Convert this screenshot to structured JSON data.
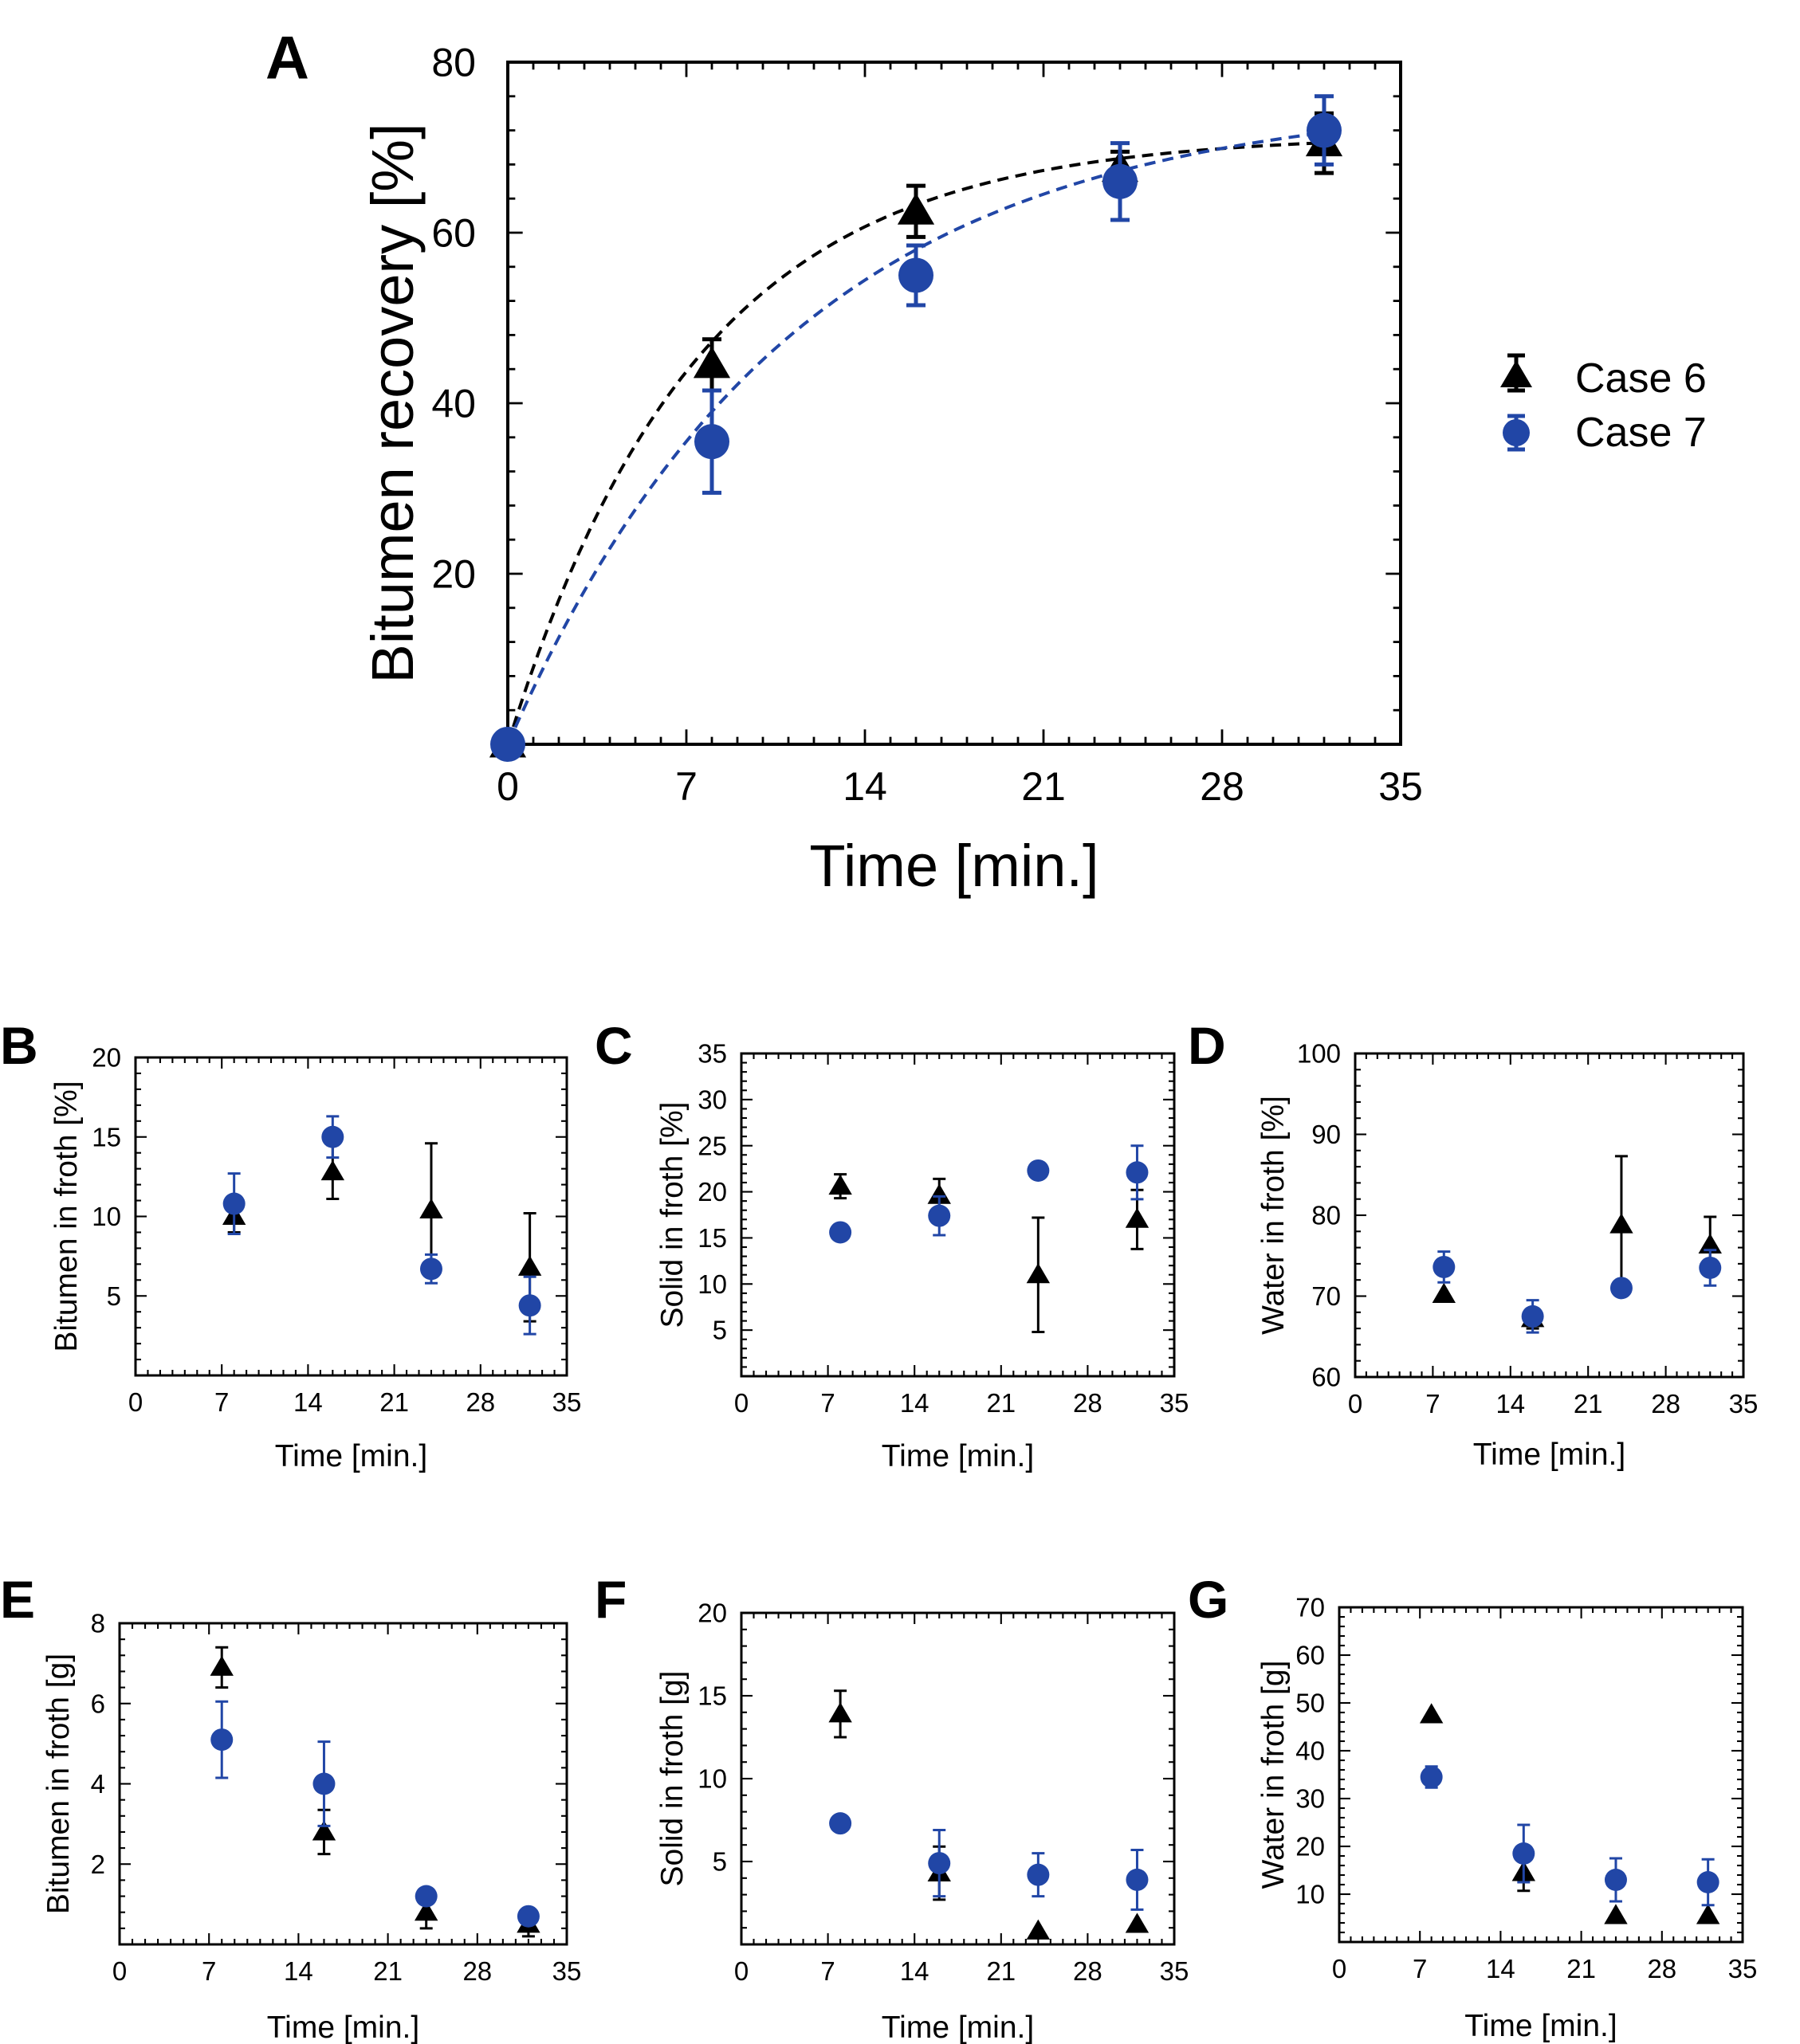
{
  "legend": {
    "case6": "Case 6",
    "case7": "Case 7"
  },
  "colors": {
    "case6": "#000000",
    "case7": "#2146a6"
  },
  "chart_data": [
    {
      "panel": "A",
      "type": "scatter",
      "xlabel": "Time [min.]",
      "ylabel": "Bitumen recovery [%]",
      "xlim": [
        0,
        35
      ],
      "ylim": [
        0,
        80
      ],
      "xticks": [
        0,
        7,
        14,
        21,
        28,
        35
      ],
      "yticks": [
        20,
        40,
        60,
        80
      ],
      "fit_curves": true,
      "series": [
        {
          "name": "Case 6",
          "marker": "triangle",
          "x": [
            0,
            8,
            16,
            24,
            32
          ],
          "y": [
            0,
            44.5,
            62.5,
            67.5,
            70.5
          ],
          "err": [
            0,
            3,
            3,
            2,
            3.5
          ]
        },
        {
          "name": "Case 7",
          "marker": "circle",
          "x": [
            0,
            8,
            16,
            24,
            32
          ],
          "y": [
            0,
            35.5,
            55,
            66,
            72
          ],
          "err": [
            0,
            6,
            3.5,
            4.5,
            4
          ]
        }
      ]
    },
    {
      "panel": "B",
      "type": "scatter",
      "xlabel": "Time [min.]",
      "ylabel": "Bitumen in froth [%]",
      "xlim": [
        0,
        35
      ],
      "ylim": [
        0,
        20
      ],
      "xticks": [
        0,
        7,
        14,
        21,
        28,
        35
      ],
      "yticks": [
        5,
        10,
        15,
        20
      ],
      "series": [
        {
          "name": "Case 6",
          "marker": "triangle",
          "x": [
            8,
            16,
            24,
            32
          ],
          "y": [
            10,
            12.8,
            10.4,
            6.8
          ],
          "err": [
            1,
            1.7,
            4.2,
            3.4
          ]
        },
        {
          "name": "Case 7",
          "marker": "circle",
          "x": [
            8,
            16,
            24,
            32
          ],
          "y": [
            10.8,
            15,
            6.7,
            4.4
          ],
          "err": [
            1.9,
            1.3,
            0.9,
            1.8
          ]
        }
      ]
    },
    {
      "panel": "C",
      "type": "scatter",
      "xlabel": "Time [min.]",
      "ylabel": "Solid in froth [%]",
      "xlim": [
        0,
        35
      ],
      "ylim": [
        0,
        35
      ],
      "xticks": [
        0,
        7,
        14,
        21,
        28,
        35
      ],
      "yticks": [
        5,
        10,
        15,
        20,
        25,
        30,
        35
      ],
      "series": [
        {
          "name": "Case 6",
          "marker": "triangle",
          "x": [
            8,
            16,
            24,
            32
          ],
          "y": [
            20.6,
            19.6,
            11,
            17
          ],
          "err": [
            1.3,
            1.8,
            6.2,
            3.2
          ]
        },
        {
          "name": "Case 7",
          "marker": "circle",
          "x": [
            8,
            16,
            24,
            32
          ],
          "y": [
            15.6,
            17.4,
            22.3,
            22.1
          ],
          "err": [
            0,
            2.1,
            0,
            2.9
          ]
        }
      ]
    },
    {
      "panel": "D",
      "type": "scatter",
      "xlabel": "Time [min.]",
      "ylabel": "Water in froth [%]",
      "xlim": [
        0,
        35
      ],
      "ylim": [
        60,
        100
      ],
      "xticks": [
        0,
        7,
        14,
        21,
        28,
        35
      ],
      "yticks": [
        60,
        70,
        80,
        90,
        100
      ],
      "series": [
        {
          "name": "Case 6",
          "marker": "triangle",
          "x": [
            8,
            16,
            24,
            32
          ],
          "y": [
            70.2,
            67.2,
            78.8,
            76.3
          ],
          "err": [
            0,
            1.2,
            8.5,
            3.5
          ]
        },
        {
          "name": "Case 7",
          "marker": "circle",
          "x": [
            8,
            16,
            24,
            32
          ],
          "y": [
            73.6,
            67.5,
            71,
            73.5
          ],
          "err": [
            1.9,
            2,
            0,
            2.2
          ]
        }
      ]
    },
    {
      "panel": "E",
      "type": "scatter",
      "xlabel": "Time [min.]",
      "ylabel": "Bitumen in froth [g]",
      "xlim": [
        0,
        35
      ],
      "ylim": [
        0,
        8
      ],
      "xticks": [
        0,
        7,
        14,
        21,
        28,
        35
      ],
      "yticks": [
        2,
        4,
        6,
        8
      ],
      "series": [
        {
          "name": "Case 6",
          "marker": "triangle",
          "x": [
            8,
            16,
            24,
            32
          ],
          "y": [
            6.9,
            2.8,
            0.8,
            0.5
          ],
          "err": [
            0.5,
            0.55,
            0.4,
            0.3
          ]
        },
        {
          "name": "Case 7",
          "marker": "circle",
          "x": [
            8,
            16,
            24,
            32
          ],
          "y": [
            5.1,
            4,
            1.2,
            0.7
          ],
          "err": [
            0.95,
            1.05,
            0,
            0
          ]
        }
      ]
    },
    {
      "panel": "F",
      "type": "scatter",
      "xlabel": "Time [min.]",
      "ylabel": "Solid in froth [g]",
      "xlim": [
        0,
        35
      ],
      "ylim": [
        0,
        20
      ],
      "xticks": [
        0,
        7,
        14,
        21,
        28,
        35
      ],
      "yticks": [
        5,
        10,
        15,
        20
      ],
      "series": [
        {
          "name": "Case 6",
          "marker": "triangle",
          "x": [
            8,
            16,
            24,
            32
          ],
          "y": [
            13.9,
            4.3,
            0.8,
            1.2
          ],
          "err": [
            1.4,
            1.6,
            0,
            0
          ]
        },
        {
          "name": "Case 7",
          "marker": "circle",
          "x": [
            8,
            16,
            24,
            32
          ],
          "y": [
            7.3,
            4.9,
            4.2,
            3.9
          ],
          "err": [
            0,
            2,
            1.3,
            1.8
          ]
        }
      ]
    },
    {
      "panel": "G",
      "type": "scatter",
      "xlabel": "Time [min.]",
      "ylabel": "Water in froth [g]",
      "xlim": [
        0,
        35
      ],
      "ylim": [
        0,
        70
      ],
      "xticks": [
        0,
        7,
        14,
        21,
        28,
        35
      ],
      "yticks": [
        10,
        20,
        30,
        40,
        50,
        60,
        70
      ],
      "series": [
        {
          "name": "Case 6",
          "marker": "triangle",
          "x": [
            8,
            16,
            24,
            32
          ],
          "y": [
            47.5,
            14.5,
            5.5,
            5.5
          ],
          "err": [
            0,
            3.8,
            0,
            0
          ]
        },
        {
          "name": "Case 7",
          "marker": "circle",
          "x": [
            8,
            16,
            24,
            32
          ],
          "y": [
            34.5,
            18.5,
            13,
            12.5
          ],
          "err": [
            2.2,
            6,
            4.5,
            4.8
          ]
        }
      ]
    }
  ]
}
